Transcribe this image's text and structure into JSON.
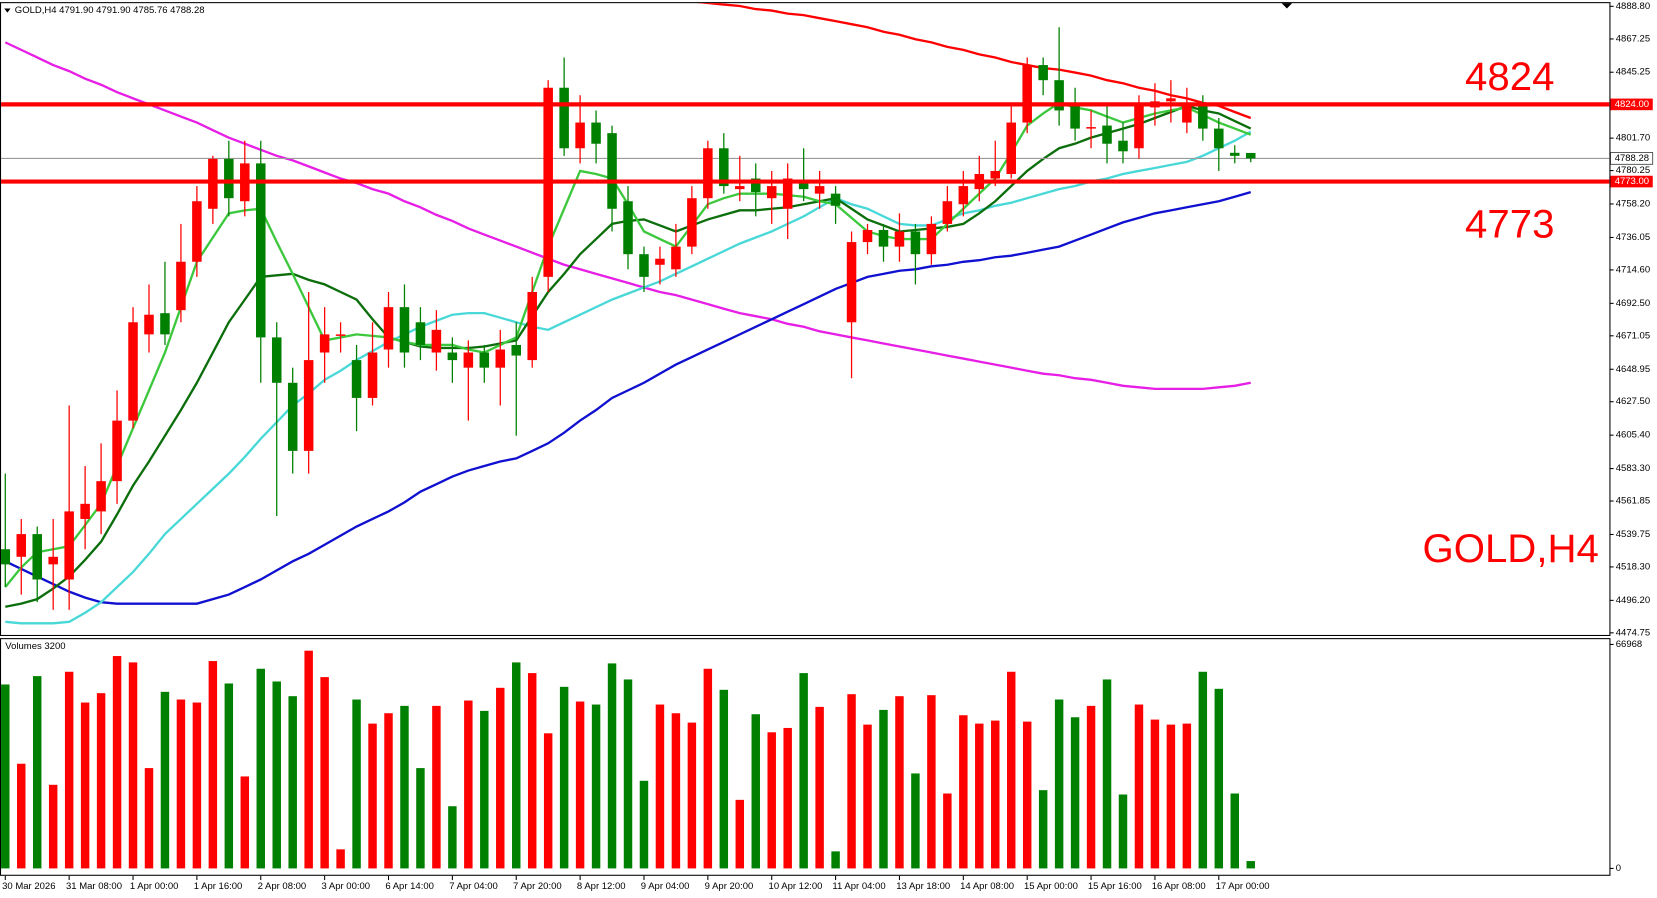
{
  "chart_data": [
    {
      "type": "candlestick",
      "title": "GOLD,H4  4791.90 4791.90 4785.76 4788.28",
      "categories": [
        "30 Mar 2026",
        null,
        null,
        null,
        "31 Mar 08:00",
        null,
        null,
        null,
        "1 Apr 00:00",
        null,
        null,
        null,
        "1 Apr 16:00",
        null,
        null,
        null,
        "2 Apr 08:00",
        null,
        null,
        null,
        "3 Apr 00:00",
        null,
        null,
        null,
        "6 Apr 14:00",
        null,
        null,
        null,
        "7 Apr 04:00",
        null,
        null,
        null,
        "7 Apr 20:00",
        null,
        null,
        null,
        "8 Apr 12:00",
        null,
        null,
        null,
        "9 Apr 04:00",
        null,
        null,
        null,
        "9 Apr 20:00",
        null,
        null,
        null,
        "10 Apr 12:00",
        null,
        null,
        null,
        "11 Apr 04:00",
        null,
        null,
        null,
        "13 Apr 18:00",
        null,
        null,
        null,
        "14 Apr 08:00",
        null,
        null,
        null,
        "15 Apr 00:00",
        null,
        null,
        null,
        "15 Apr 16:00",
        null,
        null,
        null,
        "16 Apr 08:00",
        null,
        null,
        null,
        "17 Apr 00:00",
        null,
        null
      ],
      "open": [
        4530,
        4525,
        4540,
        4520,
        4510,
        4550,
        4555,
        4575,
        4615,
        4672,
        4686,
        4688,
        4720,
        4755,
        4788,
        4760,
        4785,
        4670,
        4640,
        4595,
        4660,
        4671,
        4655,
        4630,
        4662,
        4690,
        4680,
        4660,
        4660,
        4650,
        4660,
        4650,
        4665,
        4655,
        4710,
        4835,
        4795,
        4812,
        4805,
        4760,
        4725,
        4718,
        4715,
        4730,
        4762,
        4795,
        4768,
        4775,
        4762,
        4755,
        4773,
        4765,
        4765,
        4680,
        4733,
        4741,
        4730,
        4740,
        4725,
        4745,
        4758,
        4768,
        4775,
        4778,
        4812,
        4850,
        4840,
        4825,
        4808,
        4810,
        4800,
        4795,
        4822,
        4826,
        4812,
        4825,
        4808,
        4792,
        4791.9
      ],
      "high": [
        4580,
        4550,
        4545,
        4550,
        4625,
        4585,
        4600,
        4635,
        4690,
        4705,
        4720,
        4745,
        4770,
        4790,
        4800,
        4800,
        4800,
        4680,
        4650,
        4700,
        4690,
        4680,
        4665,
        4680,
        4700,
        4705,
        4690,
        4688,
        4670,
        4668,
        4665,
        4675,
        4680,
        4710,
        4840,
        4855,
        4830,
        4820,
        4810,
        4770,
        4730,
        4730,
        4745,
        4770,
        4800,
        4805,
        4790,
        4785,
        4780,
        4785,
        4795,
        4780,
        4770,
        4740,
        4745,
        4745,
        4752,
        4745,
        4750,
        4770,
        4780,
        4790,
        4800,
        4825,
        4855,
        4855,
        4875,
        4835,
        4820,
        4825,
        4812,
        4830,
        4838,
        4840,
        4835,
        4830,
        4815,
        4797,
        4791.9
      ],
      "low": [
        4505,
        4500,
        4495,
        4490,
        4490,
        4530,
        4540,
        4560,
        4610,
        4660,
        4665,
        4680,
        4710,
        4745,
        4750,
        4750,
        4640,
        4552,
        4580,
        4580,
        4640,
        4660,
        4608,
        4625,
        4650,
        4650,
        4655,
        4648,
        4640,
        4615,
        4640,
        4625,
        4605,
        4650,
        4700,
        4790,
        4785,
        4785,
        4740,
        4715,
        4700,
        4705,
        4710,
        4725,
        4755,
        4765,
        4760,
        4750,
        4745,
        4735,
        4760,
        4755,
        4745,
        4643,
        4725,
        4720,
        4720,
        4705,
        4718,
        4740,
        4750,
        4760,
        4770,
        4775,
        4805,
        4830,
        4810,
        4800,
        4795,
        4785,
        4785,
        4788,
        4810,
        4812,
        4805,
        4800,
        4780,
        4785,
        4785.76
      ],
      "close": [
        4520,
        4540,
        4510,
        4525,
        4555,
        4560,
        4575,
        4615,
        4680,
        4685,
        4672,
        4720,
        4760,
        4788,
        4762,
        4785,
        4670,
        4640,
        4595,
        4655,
        4672,
        4672,
        4630,
        4660,
        4690,
        4660,
        4665,
        4675,
        4655,
        4660,
        4650,
        4662,
        4658,
        4700,
        4835,
        4795,
        4812,
        4798,
        4755,
        4725,
        4710,
        4722,
        4730,
        4762,
        4795,
        4770,
        4770,
        4766,
        4770,
        4775,
        4768,
        4770,
        4757,
        4733,
        4741,
        4730,
        4740,
        4725,
        4745,
        4760,
        4770,
        4778,
        4780,
        4812,
        4850,
        4840,
        4820,
        4808,
        4809,
        4798,
        4793,
        4825,
        4826,
        4828,
        4825,
        4808,
        4795,
        4790,
        4788.28
      ],
      "up_color": "#ff0000",
      "down_color": "#008000",
      "ylim": [
        4474.75,
        4888.8
      ],
      "yticks": [
        {
          "value": 4888.8,
          "label": "4888.80"
        },
        4867.25,
        4845.25,
        {
          "value": 4801.7,
          "label": "4801.70"
        },
        4780.25,
        {
          "value": 4758.2,
          "label": "4758.20"
        },
        4736.05,
        {
          "value": 4714.6,
          "label": "4714.60"
        },
        {
          "value": 4692.5,
          "label": "4692.50"
        },
        4671.05,
        4648.95,
        {
          "value": 4627.5,
          "label": "4627.50"
        },
        {
          "value": 4605.4,
          "label": "4605.40"
        },
        {
          "value": 4583.3,
          "label": "4583.30"
        },
        4561.85,
        4539.75,
        {
          "value": 4518.3,
          "label": "4518.30"
        },
        {
          "value": 4496.2,
          "label": "4496.20"
        },
        4474.75
      ],
      "series": [
        {
          "color": "#ff0000",
          "values": [
            null,
            null,
            null,
            null,
            null,
            null,
            null,
            null,
            null,
            null,
            null,
            null,
            null,
            null,
            null,
            null,
            null,
            null,
            null,
            null,
            null,
            null,
            null,
            null,
            null,
            null,
            null,
            null,
            null,
            null,
            null,
            null,
            null,
            null,
            null,
            null,
            null,
            null,
            null,
            null,
            null,
            null,
            null,
            4892,
            4891,
            4890,
            4889,
            4887,
            4886,
            4884,
            4883,
            4881,
            4879,
            4877,
            4875,
            4872,
            4870,
            4867,
            4865,
            4862,
            4860,
            4857,
            4855,
            4852,
            4850,
            4848,
            4847,
            4845,
            4843,
            4840,
            4838,
            4835,
            4833,
            4830,
            4828,
            4825,
            4823,
            4819,
            4815
          ]
        },
        {
          "color": "#e61ee6",
          "values": [
            4865,
            4860,
            4855,
            4850,
            4846,
            4841,
            4837,
            4832,
            4828,
            4824,
            4820,
            4816,
            4812,
            4807,
            4802,
            4798,
            4794,
            4790,
            4787,
            4783,
            4779,
            4775,
            4772,
            4768,
            4765,
            4760,
            4756,
            4751,
            4747,
            4742,
            4738,
            4734,
            4730,
            4726,
            4722,
            4718,
            4715,
            4712,
            4709,
            4706,
            4703,
            4700,
            4698,
            4695,
            4692,
            4689,
            4686,
            4684,
            4682,
            4679,
            4677,
            4674,
            4672,
            4670,
            4668,
            4666,
            4664,
            4662,
            4660,
            4658,
            4656,
            4654,
            4652,
            4650,
            4648,
            4646,
            4645,
            4643,
            4642,
            4640,
            4638,
            4637,
            4636,
            4636,
            4636,
            4636,
            4637,
            4638,
            4640
          ]
        },
        {
          "color": "#1010d0",
          "values": [
            4522,
            4517,
            4512,
            4507,
            4502,
            4498,
            4495,
            4494,
            4494,
            4494,
            4494,
            4494,
            4494,
            4497,
            4500,
            4505,
            4510,
            4516,
            4522,
            4527,
            4533,
            4539,
            4545,
            4550,
            4555,
            4561,
            4568,
            4573,
            4578,
            4582,
            4585,
            4588,
            4590,
            4595,
            4600,
            4607,
            4615,
            4622,
            4630,
            4635,
            4640,
            4646,
            4652,
            4657,
            4662,
            4667,
            4672,
            4677,
            4682,
            4687,
            4692,
            4697,
            4702,
            4706,
            4710,
            4712,
            4714,
            4715,
            4717,
            4718,
            4720,
            4721,
            4723,
            4724,
            4726,
            4728,
            4730,
            4734,
            4738,
            4742,
            4746,
            4749,
            4752,
            4754,
            4756,
            4758,
            4760,
            4763,
            4766
          ]
        },
        {
          "color": "#48d8d8",
          "values": [
            4482,
            4481,
            4481,
            4481,
            4482,
            4488,
            4495,
            4505,
            4515,
            4527,
            4540,
            4550,
            4560,
            4570,
            4580,
            4591,
            4603,
            4614,
            4625,
            4633,
            4642,
            4648,
            4655,
            4661,
            4667,
            4672,
            4677,
            4681,
            4685,
            4686,
            4686,
            4683,
            4680,
            4677,
            4675,
            4680,
            4685,
            4690,
            4695,
            4699,
            4703,
            4707,
            4712,
            4717,
            4722,
            4727,
            4732,
            4736,
            4740,
            4745,
            4750,
            4756,
            4762,
            4758,
            4755,
            4750,
            4745,
            4744,
            4744,
            4748,
            4752,
            4754,
            4757,
            4759,
            4762,
            4765,
            4768,
            4770,
            4773,
            4775,
            4778,
            4780,
            4782,
            4784,
            4786,
            4790,
            4795,
            4800,
            4806
          ]
        },
        {
          "color": "#0b6e0b",
          "values": [
            4492,
            4494,
            4497,
            4504,
            4512,
            4523,
            4535,
            4553,
            4572,
            4588,
            4605,
            4622,
            4640,
            4660,
            4680,
            4695,
            4710,
            4711,
            4712,
            4708,
            4705,
            4700,
            4695,
            4682,
            4670,
            4667,
            4664,
            4663,
            4663,
            4663,
            4664,
            4666,
            4668,
            4684,
            4700,
            4712,
            4725,
            4735,
            4745,
            4747,
            4748,
            4744,
            4740,
            4744,
            4748,
            4751,
            4754,
            4754,
            4755,
            4756,
            4758,
            4760,
            4762,
            4755,
            4748,
            4744,
            4740,
            4741,
            4742,
            4743,
            4745,
            4752,
            4760,
            4770,
            4780,
            4788,
            4795,
            4798,
            4802,
            4805,
            4808,
            4811,
            4815,
            4819,
            4823,
            4820,
            4818,
            4813,
            4808
          ]
        },
        {
          "color": "#3cc83c",
          "values": [
            4505,
            4518,
            4528,
            4530,
            4532,
            4546,
            4560,
            4585,
            4610,
            4635,
            4660,
            4690,
            4720,
            4736,
            4752,
            4754,
            4755,
            4733,
            4712,
            4690,
            4668,
            4670,
            4672,
            4671,
            4670,
            4667,
            4665,
            4665,
            4665,
            4662,
            4660,
            4665,
            4670,
            4700,
            4730,
            4755,
            4780,
            4778,
            4775,
            4758,
            4740,
            4735,
            4730,
            4744,
            4758,
            4762,
            4765,
            4765,
            4765,
            4764,
            4763,
            4760,
            4758,
            4749,
            4740,
            4737,
            4735,
            4735,
            4735,
            4745,
            4755,
            4765,
            4775,
            4792,
            4810,
            4818,
            4825,
            4822,
            4820,
            4816,
            4812,
            4815,
            4818,
            4820,
            4822,
            4817,
            4812,
            4808,
            4804
          ]
        }
      ],
      "levels": [
        {
          "value": 4824,
          "label": "4824.00",
          "color": "#ff0000"
        },
        {
          "value": 4773,
          "label": "4773.00",
          "color": "#ff0000"
        }
      ],
      "last_price": 4788.28,
      "annotations": [
        {
          "text": "4824"
        },
        {
          "text": "4773"
        },
        {
          "text": "GOLD,H4"
        }
      ]
    },
    {
      "type": "bar",
      "title": "Volumes 3200",
      "values": [
        55000,
        31300,
        57500,
        25000,
        58800,
        49600,
        52400,
        63500,
        61600,
        30000,
        52800,
        50500,
        49600,
        62000,
        55300,
        27500,
        59700,
        55900,
        51500,
        65100,
        57200,
        5700,
        50500,
        43300,
        46400,
        48600,
        30000,
        48600,
        18600,
        50200,
        47100,
        54000,
        61600,
        58400,
        40400,
        54300,
        49900,
        49000,
        61300,
        56500,
        26200,
        49000,
        46400,
        43600,
        59700,
        53400,
        20500,
        46100,
        40700,
        42000,
        58400,
        48300,
        5100,
        52100,
        43000,
        47400,
        51500,
        28400,
        51800,
        22400,
        45800,
        43300,
        44200,
        58800,
        43900,
        23400,
        50500,
        45200,
        48600,
        56500,
        22100,
        49000,
        44500,
        43000,
        43300,
        58800,
        53700,
        22400,
        2200
      ],
      "ylim": [
        0,
        66968
      ],
      "yticks": [
        66968,
        0
      ]
    }
  ]
}
